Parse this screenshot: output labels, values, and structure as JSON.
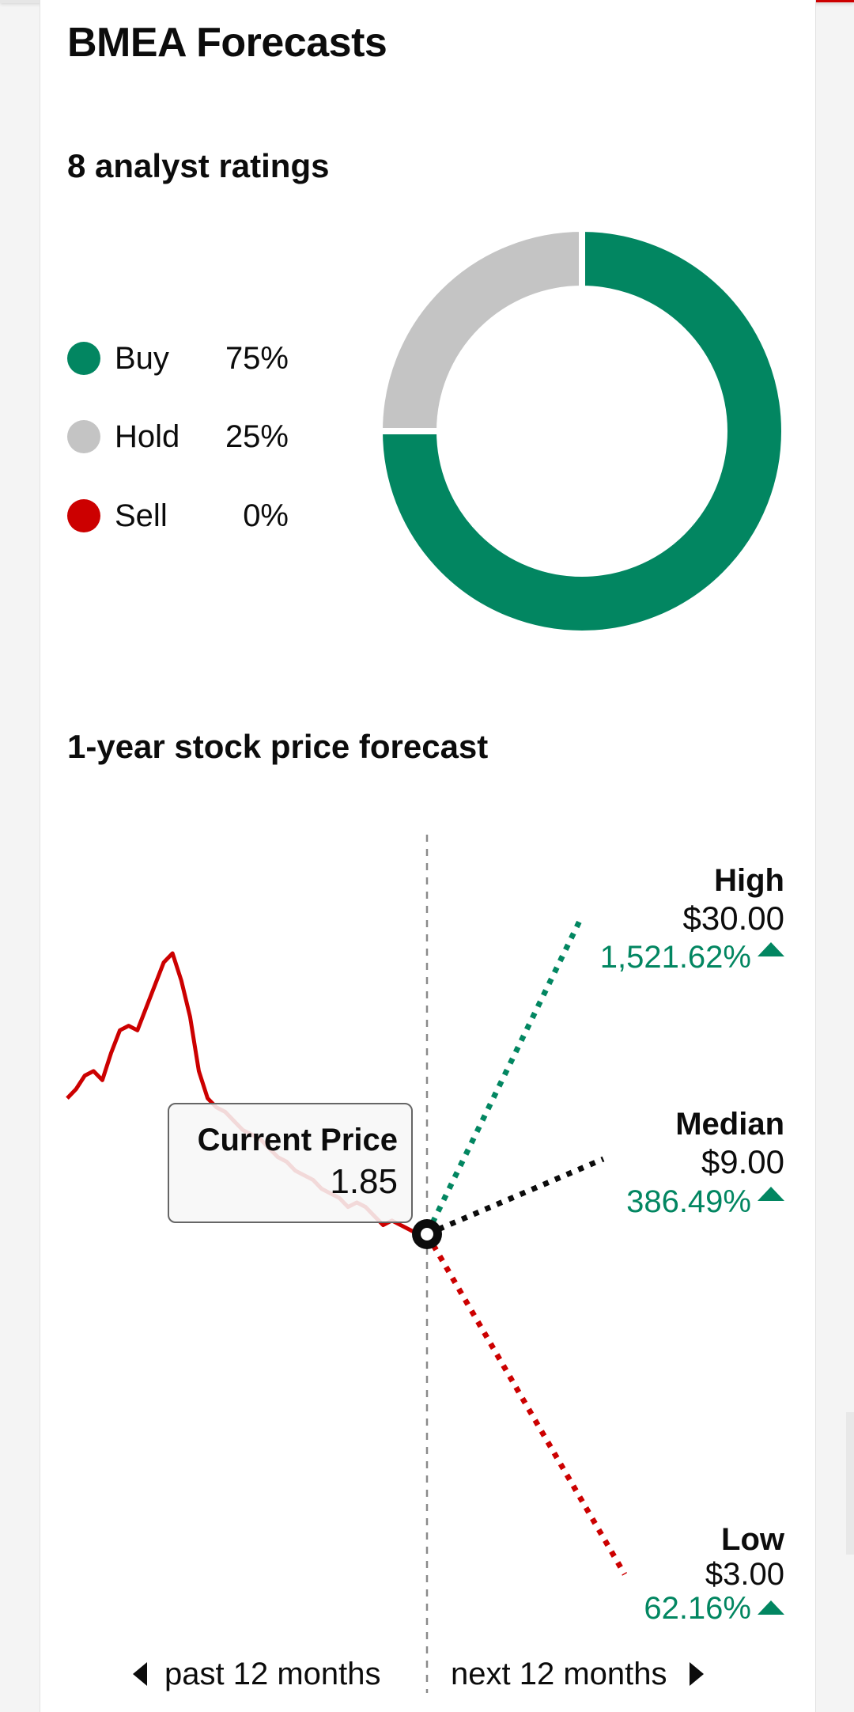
{
  "header": {
    "title": "BMEA Forecasts"
  },
  "ratings": {
    "title": "8 analyst ratings",
    "items": [
      {
        "label": "Buy",
        "pct": "75%",
        "value": 75,
        "color": "#028661"
      },
      {
        "label": "Hold",
        "pct": "25%",
        "value": 25,
        "color": "#b8b8b8"
      },
      {
        "label": "Sell",
        "pct": "0%",
        "value": 0,
        "color": "#cc0000"
      }
    ]
  },
  "forecast": {
    "title": "1-year stock price forecast",
    "tooltip": {
      "label": "Current Price",
      "value": "1.85"
    },
    "targets": [
      {
        "label": "High",
        "price": "$30.00",
        "change": "1,521.62%",
        "color": "#028661"
      },
      {
        "label": "Median",
        "price": "$9.00",
        "change": "386.49%",
        "color": "#0c0c0c"
      },
      {
        "label": "Low",
        "price": "$3.00",
        "change": "62.16%",
        "color": "#cc0000"
      }
    ],
    "change_color": "#028661",
    "past_label": "past 12 months",
    "next_label": "next 12 months",
    "history_color": "#cc0000"
  },
  "chart_data": [
    {
      "type": "pie",
      "title": "8 analyst ratings",
      "categories": [
        "Buy",
        "Hold",
        "Sell"
      ],
      "values": [
        75,
        25,
        0
      ],
      "colors": [
        "#028661",
        "#b8b8b8",
        "#cc0000"
      ]
    },
    {
      "type": "line",
      "title": "1-year stock price forecast",
      "current_price": 1.85,
      "past_series_relative": [
        0.6,
        0.62,
        0.65,
        0.66,
        0.64,
        0.7,
        0.75,
        0.76,
        0.75,
        0.8,
        0.85,
        0.9,
        0.92,
        0.86,
        0.78,
        0.66,
        0.6,
        0.58,
        0.57,
        0.55,
        0.53,
        0.52,
        0.51,
        0.49,
        0.47,
        0.46,
        0.44,
        0.43,
        0.42,
        0.4,
        0.39,
        0.38,
        0.36,
        0.37,
        0.36,
        0.34,
        0.32,
        0.33,
        0.32,
        0.31,
        0.3,
        0.3
      ],
      "targets": [
        {
          "name": "High",
          "value": 30.0,
          "change_pct": 1521.62
        },
        {
          "name": "Median",
          "value": 9.0,
          "change_pct": 386.49
        },
        {
          "name": "Low",
          "value": 3.0,
          "change_pct": 62.16
        }
      ]
    }
  ]
}
